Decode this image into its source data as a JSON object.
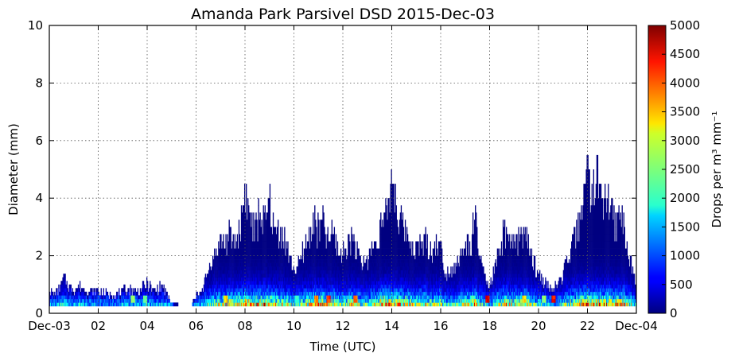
{
  "chart_data": {
    "type": "heatmap",
    "title": "Amanda Park Parsivel DSD 2015-Dec-03",
    "xlabel": "Time (UTC)",
    "ylabel": "Diameter (mm)",
    "colorbar_label": "Drops per m³ mm⁻¹",
    "xlim_hours": [
      0,
      24
    ],
    "ylim": [
      0,
      10
    ],
    "clim": [
      0,
      5000
    ],
    "colormap": "jet",
    "grid": true,
    "x_ticks": [
      {
        "value": 0,
        "label": "Dec-03"
      },
      {
        "value": 2,
        "label": "02"
      },
      {
        "value": 4,
        "label": "04"
      },
      {
        "value": 6,
        "label": "06"
      },
      {
        "value": 8,
        "label": "08"
      },
      {
        "value": 10,
        "label": "10"
      },
      {
        "value": 12,
        "label": "12"
      },
      {
        "value": 14,
        "label": "14"
      },
      {
        "value": 16,
        "label": "16"
      },
      {
        "value": 18,
        "label": "18"
      },
      {
        "value": 20,
        "label": "20"
      },
      {
        "value": 22,
        "label": "22"
      },
      {
        "value": 24,
        "label": "Dec-04"
      }
    ],
    "y_ticks": [
      {
        "value": 0,
        "label": "0"
      },
      {
        "value": 2,
        "label": "2"
      },
      {
        "value": 4,
        "label": "4"
      },
      {
        "value": 6,
        "label": "6"
      },
      {
        "value": 8,
        "label": "8"
      },
      {
        "value": 10,
        "label": "10"
      }
    ],
    "colorbar_ticks": [
      {
        "value": 0,
        "label": "0"
      },
      {
        "value": 500,
        "label": "500"
      },
      {
        "value": 1000,
        "label": "1000"
      },
      {
        "value": 1500,
        "label": "1500"
      },
      {
        "value": 2000,
        "label": "2000"
      },
      {
        "value": 2500,
        "label": "2500"
      },
      {
        "value": 3000,
        "label": "3000"
      },
      {
        "value": 3500,
        "label": "3500"
      },
      {
        "value": 4000,
        "label": "4000"
      },
      {
        "value": 4500,
        "label": "4500"
      },
      {
        "value": 5000,
        "label": "5000"
      }
    ],
    "max_diameter_profile": [
      [
        0.0,
        0.9
      ],
      [
        0.2,
        0.7
      ],
      [
        0.4,
        0.9
      ],
      [
        0.6,
        1.3
      ],
      [
        0.8,
        1.0
      ],
      [
        1.0,
        0.9
      ],
      [
        1.3,
        1.0
      ],
      [
        1.6,
        0.8
      ],
      [
        2.0,
        0.8
      ],
      [
        2.4,
        0.7
      ],
      [
        2.8,
        0.7
      ],
      [
        3.2,
        0.9
      ],
      [
        3.6,
        0.8
      ],
      [
        4.0,
        1.1
      ],
      [
        4.3,
        0.8
      ],
      [
        4.6,
        1.0
      ],
      [
        4.8,
        0.7
      ],
      [
        5.0,
        0.4
      ],
      [
        5.3,
        0.3
      ],
      [
        5.6,
        0.0
      ],
      [
        6.0,
        0.6
      ],
      [
        6.3,
        1.0
      ],
      [
        6.6,
        1.9
      ],
      [
        6.8,
        2.3
      ],
      [
        7.0,
        2.7
      ],
      [
        7.2,
        2.6
      ],
      [
        7.4,
        2.9
      ],
      [
        7.6,
        2.6
      ],
      [
        7.8,
        3.2
      ],
      [
        8.0,
        4.6
      ],
      [
        8.2,
        3.6
      ],
      [
        8.4,
        3.0
      ],
      [
        8.6,
        3.8
      ],
      [
        8.8,
        3.2
      ],
      [
        9.0,
        4.3
      ],
      [
        9.2,
        3.0
      ],
      [
        9.4,
        3.1
      ],
      [
        9.6,
        2.8
      ],
      [
        9.8,
        2.1
      ],
      [
        10.0,
        1.6
      ],
      [
        10.2,
        1.7
      ],
      [
        10.4,
        2.4
      ],
      [
        10.6,
        2.8
      ],
      [
        10.8,
        3.5
      ],
      [
        11.0,
        3.0
      ],
      [
        11.2,
        3.4
      ],
      [
        11.4,
        2.7
      ],
      [
        11.6,
        3.0
      ],
      [
        11.8,
        2.4
      ],
      [
        12.0,
        2.2
      ],
      [
        12.2,
        2.6
      ],
      [
        12.4,
        2.9
      ],
      [
        12.6,
        2.2
      ],
      [
        12.8,
        1.8
      ],
      [
        13.0,
        2.0
      ],
      [
        13.2,
        2.4
      ],
      [
        13.4,
        2.9
      ],
      [
        13.6,
        3.3
      ],
      [
        13.8,
        3.6
      ],
      [
        14.0,
        5.1
      ],
      [
        14.2,
        3.9
      ],
      [
        14.4,
        3.3
      ],
      [
        14.6,
        3.0
      ],
      [
        14.8,
        2.6
      ],
      [
        15.0,
        2.4
      ],
      [
        15.2,
        2.6
      ],
      [
        15.4,
        2.7
      ],
      [
        15.6,
        2.2
      ],
      [
        15.8,
        2.6
      ],
      [
        16.0,
        2.4
      ],
      [
        16.2,
        1.5
      ],
      [
        16.4,
        1.6
      ],
      [
        16.6,
        1.8
      ],
      [
        16.8,
        2.1
      ],
      [
        17.0,
        2.4
      ],
      [
        17.2,
        2.6
      ],
      [
        17.4,
        3.4
      ],
      [
        17.6,
        2.2
      ],
      [
        17.8,
        1.2
      ],
      [
        18.0,
        1.0
      ],
      [
        18.2,
        1.6
      ],
      [
        18.4,
        2.2
      ],
      [
        18.6,
        3.1
      ],
      [
        18.8,
        2.4
      ],
      [
        19.0,
        2.7
      ],
      [
        19.2,
        2.6
      ],
      [
        19.4,
        3.3
      ],
      [
        19.6,
        2.4
      ],
      [
        19.8,
        1.9
      ],
      [
        20.0,
        1.4
      ],
      [
        20.2,
        1.2
      ],
      [
        20.4,
        1.0
      ],
      [
        20.6,
        0.9
      ],
      [
        20.8,
        1.0
      ],
      [
        21.0,
        1.5
      ],
      [
        21.2,
        1.8
      ],
      [
        21.4,
        2.6
      ],
      [
        21.6,
        3.1
      ],
      [
        21.8,
        4.4
      ],
      [
        22.0,
        5.1
      ],
      [
        22.2,
        4.6
      ],
      [
        22.4,
        5.0
      ],
      [
        22.6,
        4.6
      ],
      [
        22.8,
        4.1
      ],
      [
        23.0,
        3.9
      ],
      [
        23.2,
        3.2
      ],
      [
        23.4,
        3.9
      ],
      [
        23.6,
        2.4
      ],
      [
        23.8,
        1.8
      ],
      [
        24.0,
        1.2
      ]
    ],
    "hotspots": [
      {
        "t": 3.4,
        "d": 0.45,
        "value": 2800
      },
      {
        "t": 3.9,
        "d": 0.45,
        "value": 2600
      },
      {
        "t": 7.2,
        "d": 0.55,
        "value": 3600
      },
      {
        "t": 10.1,
        "d": 0.45,
        "value": 2200
      },
      {
        "t": 10.9,
        "d": 0.45,
        "value": 4000
      },
      {
        "t": 11.4,
        "d": 0.45,
        "value": 4500
      },
      {
        "t": 12.5,
        "d": 0.45,
        "value": 4200
      },
      {
        "t": 17.3,
        "d": 0.45,
        "value": 2400
      },
      {
        "t": 17.9,
        "d": 0.55,
        "value": 5000
      },
      {
        "t": 19.4,
        "d": 0.45,
        "value": 3500
      },
      {
        "t": 20.2,
        "d": 0.45,
        "value": 2800
      },
      {
        "t": 20.6,
        "d": 0.45,
        "value": 4800
      }
    ]
  }
}
